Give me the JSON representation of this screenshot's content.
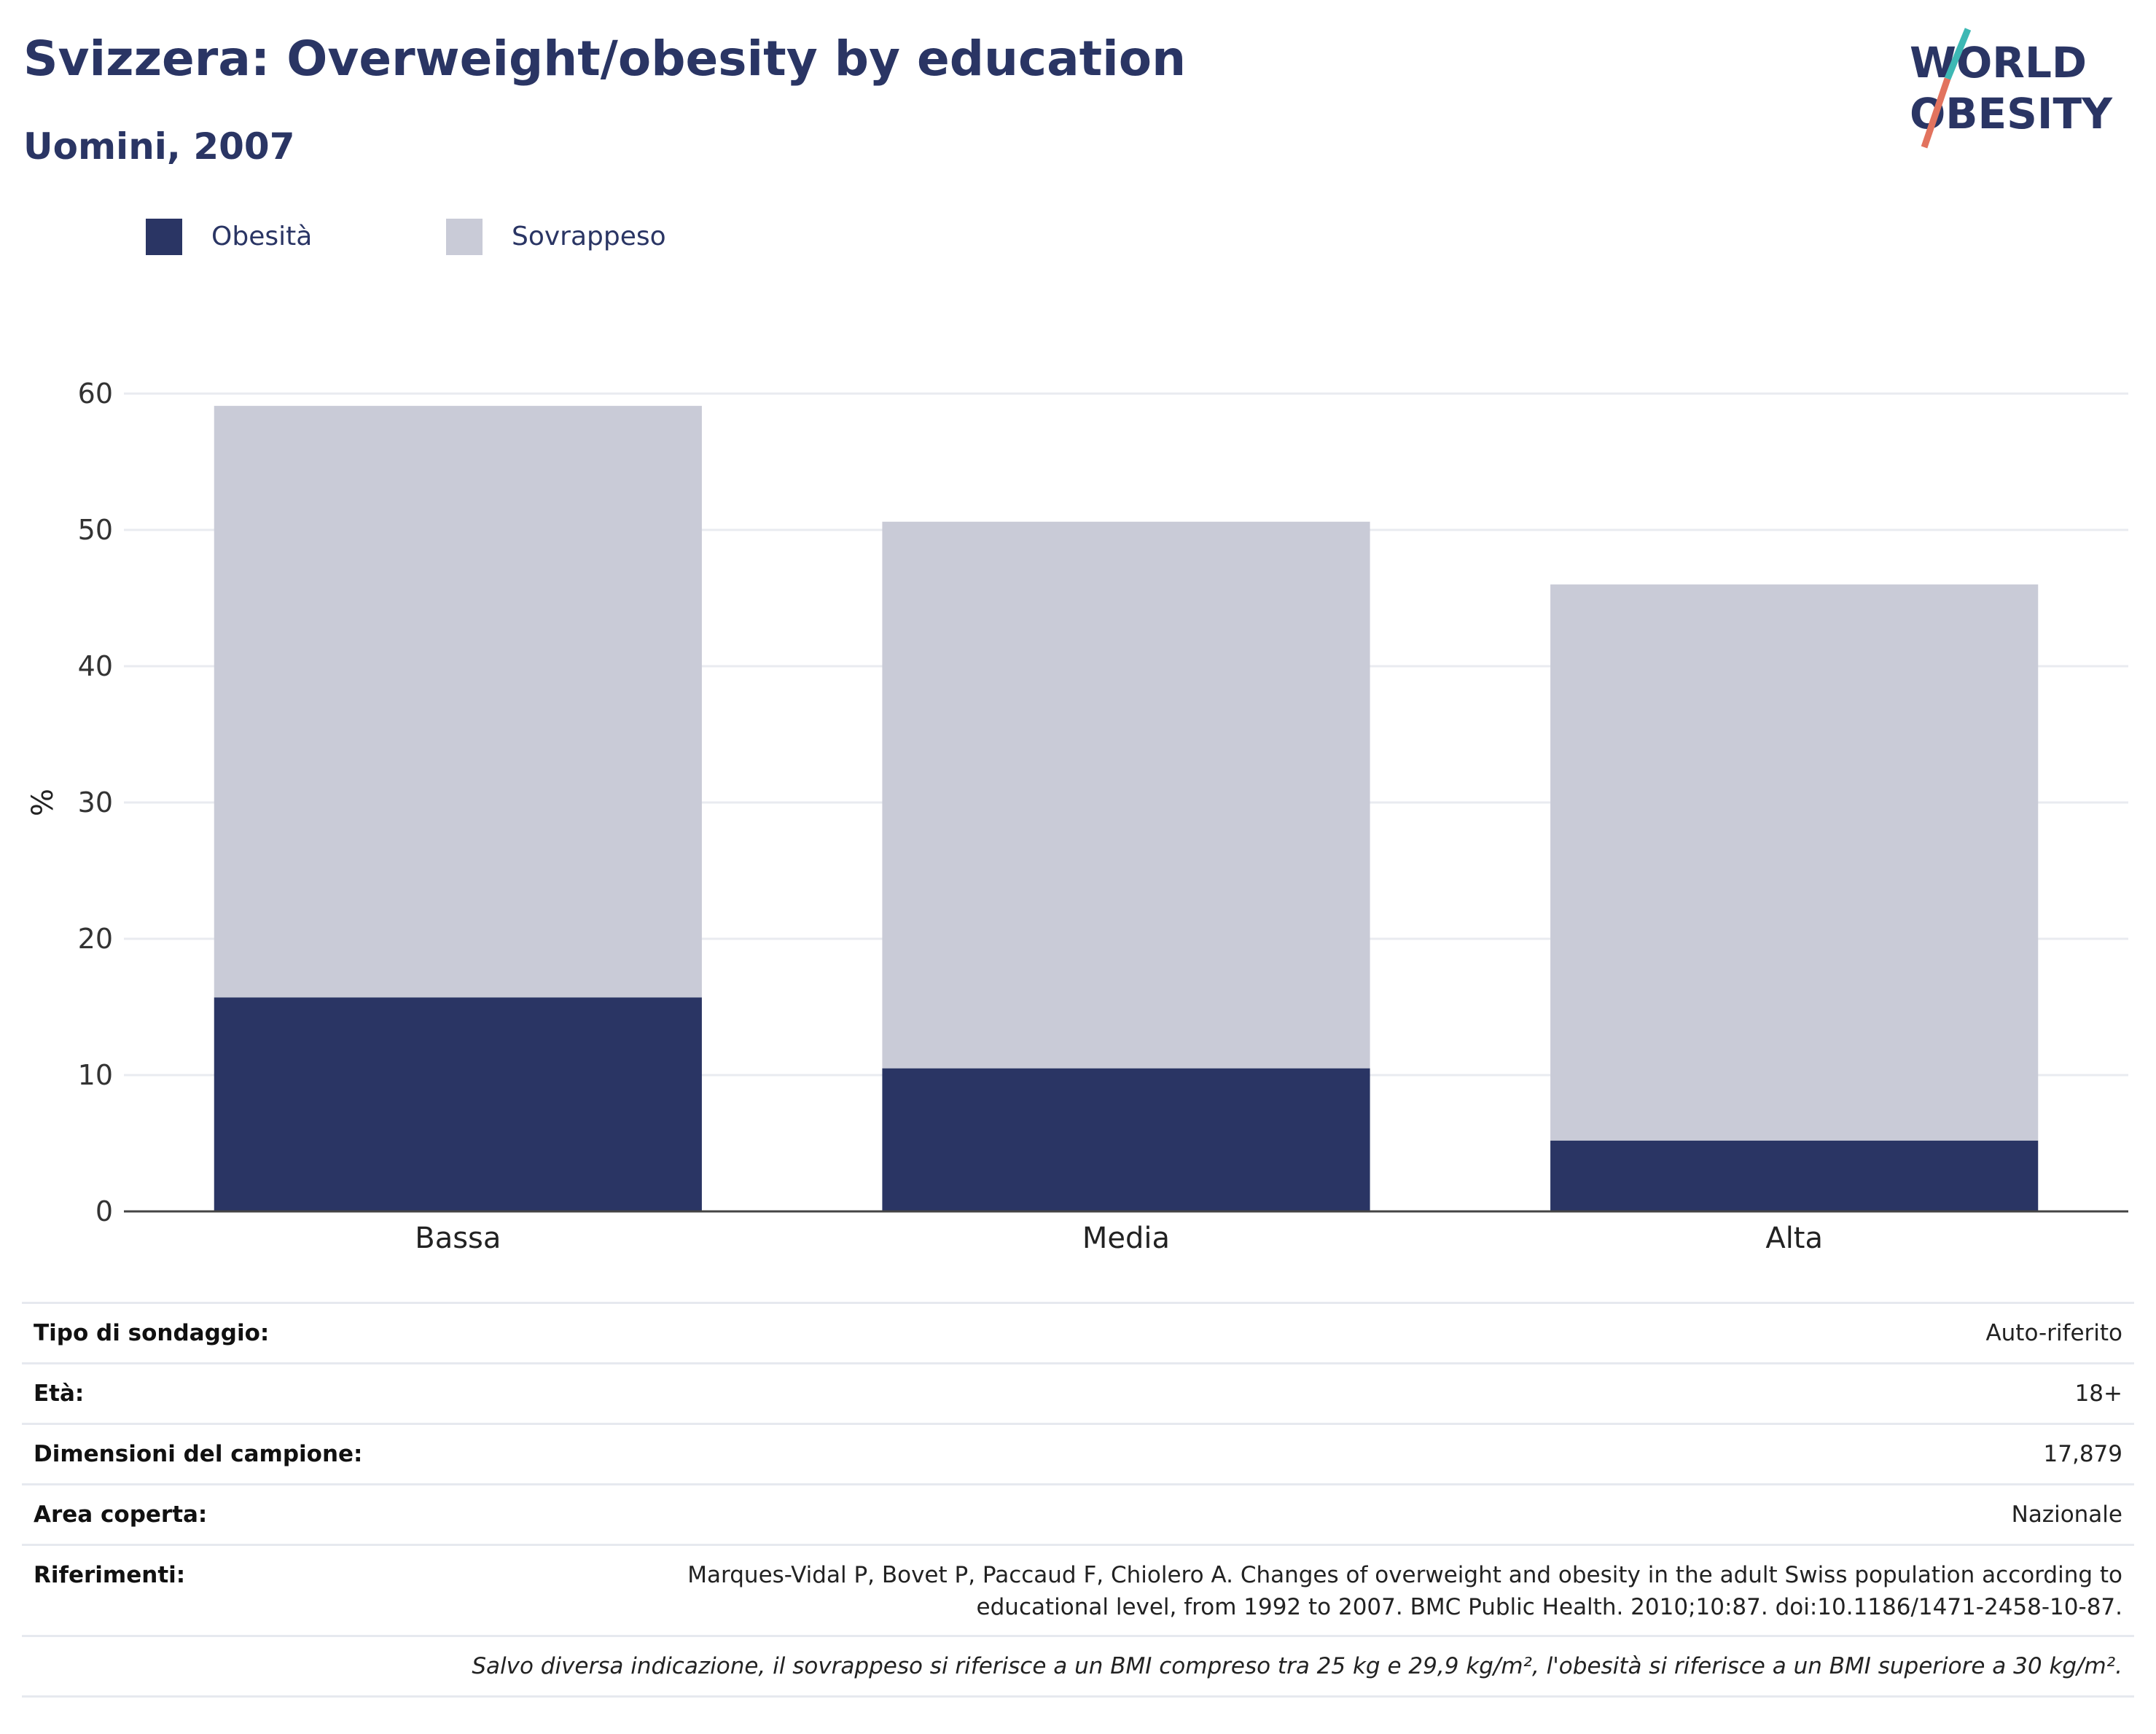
{
  "header": {
    "title": "Svizzera: Overweight/obesity by education",
    "subtitle": "Uomini, 2007",
    "logo_line1": "WORLD",
    "logo_line2": "OBESITY"
  },
  "legend": [
    {
      "label": "Obesità",
      "color": "#2a3564"
    },
    {
      "label": "Sovrappeso",
      "color": "#c9cbd7"
    }
  ],
  "chart_data": {
    "type": "bar",
    "stacked": true,
    "categories": [
      "Bassa",
      "Media",
      "Alta"
    ],
    "series": [
      {
        "name": "Obesità",
        "values": [
          15.7,
          10.5,
          5.2
        ],
        "color": "#2a3564"
      },
      {
        "name": "Sovrappeso",
        "values": [
          43.4,
          40.1,
          40.8
        ],
        "color": "#c9cbd7"
      }
    ],
    "ylabel": "%",
    "ylim": [
      0,
      60
    ],
    "yticks": [
      0,
      10,
      20,
      30,
      40,
      50,
      60
    ],
    "grid": true,
    "legend_position": "top-left"
  },
  "info_table": {
    "rows": [
      {
        "key": "Tipo di sondaggio:",
        "value": "Auto-riferito"
      },
      {
        "key": "Età:",
        "value": "18+"
      },
      {
        "key": "Dimensioni del campione:",
        "value": "17,879"
      },
      {
        "key": "Area coperta:",
        "value": "Nazionale"
      },
      {
        "key": "Riferimenti:",
        "value_line1": "Marques-Vidal P, Bovet P, Paccaud F, Chiolero A. Changes of overweight and obesity in the adult Swiss population according to",
        "value_line2": "educational level, from 1992 to 2007. BMC Public Health. 2010;10:87. doi:10.1186/1471-2458-10-87."
      }
    ],
    "note": "Salvo diversa indicazione, il sovrappeso si riferisce a un BMI compreso tra 25 kg e 29,9 kg/m², l'obesità si riferisce a un BMI superiore a 30 kg/m²."
  }
}
